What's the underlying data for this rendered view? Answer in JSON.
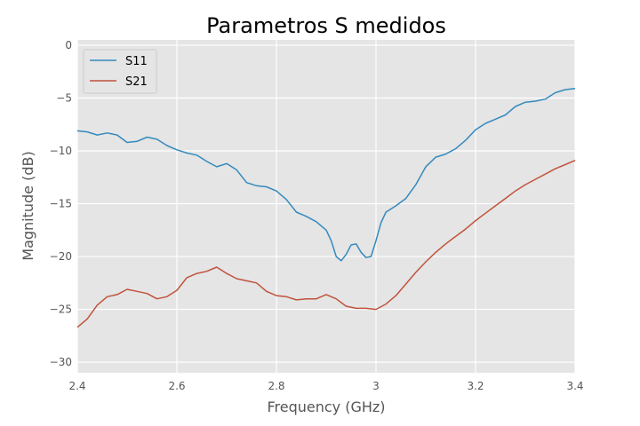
{
  "chart_data": {
    "type": "line",
    "title": "Parametros S medidos",
    "xlabel": "Frequency (GHz)",
    "ylabel": "Magnitude (dB)",
    "xlim": [
      2.4,
      3.4
    ],
    "ylim": [
      -31,
      0.5
    ],
    "xticks": [
      2.4,
      2.6,
      2.8,
      3.0,
      3.2,
      3.4
    ],
    "xtick_labels": [
      "2.4",
      "2.6",
      "2.8",
      "3",
      "3.2",
      "3.4"
    ],
    "yticks": [
      0,
      -5,
      -10,
      -15,
      -20,
      -25,
      -30
    ],
    "ytick_labels": [
      "0",
      "−5",
      "−10",
      "−15",
      "−20",
      "−25",
      "−30"
    ],
    "grid": true,
    "legend_position": "top-left",
    "background": "#e5e5e5",
    "series": [
      {
        "name": "S11",
        "color": "#348abd",
        "x": [
          2.4,
          2.42,
          2.44,
          2.46,
          2.48,
          2.5,
          2.52,
          2.54,
          2.56,
          2.58,
          2.6,
          2.62,
          2.64,
          2.66,
          2.68,
          2.7,
          2.72,
          2.74,
          2.76,
          2.78,
          2.8,
          2.82,
          2.84,
          2.86,
          2.88,
          2.9,
          2.91,
          2.92,
          2.93,
          2.94,
          2.95,
          2.96,
          2.97,
          2.98,
          2.99,
          3.0,
          3.01,
          3.02,
          3.04,
          3.06,
          3.08,
          3.1,
          3.12,
          3.14,
          3.16,
          3.18,
          3.2,
          3.22,
          3.24,
          3.26,
          3.28,
          3.3,
          3.32,
          3.34,
          3.36,
          3.38,
          3.4
        ],
        "y": [
          -8.1,
          -8.2,
          -8.5,
          -8.3,
          -8.5,
          -9.2,
          -9.1,
          -8.7,
          -8.9,
          -9.5,
          -9.9,
          -10.2,
          -10.4,
          -11.0,
          -11.5,
          -11.2,
          -11.8,
          -13.0,
          -13.3,
          -13.4,
          -13.8,
          -14.6,
          -15.8,
          -16.2,
          -16.7,
          -17.5,
          -18.5,
          -20.0,
          -20.4,
          -19.8,
          -18.9,
          -18.8,
          -19.6,
          -20.1,
          -20.0,
          -18.5,
          -16.8,
          -15.8,
          -15.2,
          -14.5,
          -13.2,
          -11.5,
          -10.6,
          -10.3,
          -9.8,
          -9.0,
          -8.0,
          -7.4,
          -7.0,
          -6.6,
          -5.8,
          -5.4,
          -5.3,
          -5.1,
          -4.5,
          -4.2,
          -4.1
        ]
      },
      {
        "name": "S21",
        "color": "#c0533d",
        "x": [
          2.4,
          2.42,
          2.44,
          2.46,
          2.48,
          2.5,
          2.52,
          2.54,
          2.56,
          2.58,
          2.6,
          2.62,
          2.64,
          2.66,
          2.68,
          2.7,
          2.72,
          2.74,
          2.76,
          2.78,
          2.8,
          2.82,
          2.84,
          2.86,
          2.88,
          2.9,
          2.92,
          2.94,
          2.96,
          2.98,
          3.0,
          3.02,
          3.04,
          3.06,
          3.08,
          3.1,
          3.12,
          3.14,
          3.16,
          3.18,
          3.2,
          3.22,
          3.24,
          3.26,
          3.28,
          3.3,
          3.32,
          3.34,
          3.36,
          3.38,
          3.4
        ],
        "y": [
          -26.7,
          -25.9,
          -24.6,
          -23.8,
          -23.6,
          -23.1,
          -23.3,
          -23.5,
          -24.0,
          -23.8,
          -23.2,
          -22.0,
          -21.6,
          -21.4,
          -21.0,
          -21.6,
          -22.1,
          -22.3,
          -22.5,
          -23.3,
          -23.7,
          -23.8,
          -24.1,
          -24.0,
          -24.0,
          -23.6,
          -24.0,
          -24.7,
          -24.9,
          -24.9,
          -25.0,
          -24.5,
          -23.7,
          -22.6,
          -21.5,
          -20.5,
          -19.6,
          -18.8,
          -18.1,
          -17.4,
          -16.6,
          -15.9,
          -15.2,
          -14.5,
          -13.8,
          -13.2,
          -12.7,
          -12.2,
          -11.7,
          -11.3,
          -10.9
        ]
      }
    ]
  }
}
